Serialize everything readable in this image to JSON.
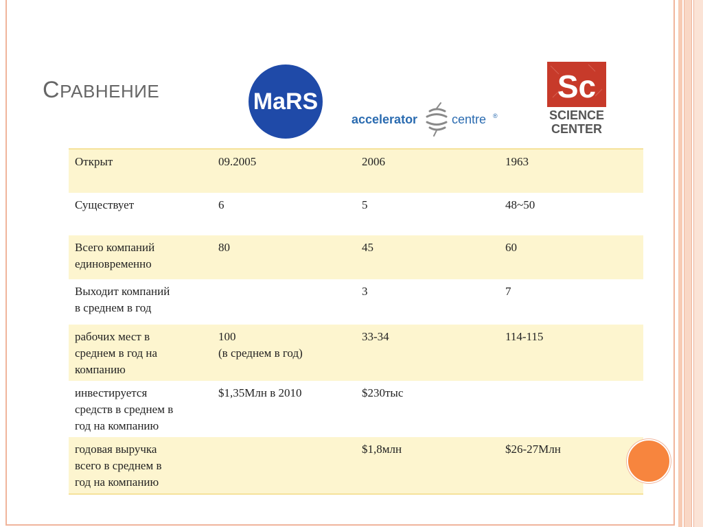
{
  "title": {
    "first_letter": "С",
    "rest": "РАВНЕНИЕ"
  },
  "logos": {
    "mars": {
      "text": "MaRS",
      "color": "#1f4aa8"
    },
    "accelerator": {
      "text_left": "accelerator",
      "text_right": "centre",
      "mark": "®",
      "color": "#2a6bb0"
    },
    "science_center": {
      "letters": "Sc",
      "line1": "SCIENCE",
      "line2": "CENTER",
      "red": "#c73a2a",
      "gray": "#555555"
    }
  },
  "colors": {
    "row_highlight": "#fdf5cf",
    "border_accent": "#f0b49b",
    "circle": "#f7853e"
  },
  "table": {
    "rows": [
      {
        "label": "Открыт",
        "mars": "09.2005",
        "accelerator": "2006",
        "science": "1963"
      },
      {
        "label": "Существует",
        "mars": "6",
        "accelerator": "5",
        "science": "48~50"
      },
      {
        "label": "Всего компаний\nединовременно",
        "mars": "80",
        "accelerator": "45",
        "science": "60"
      },
      {
        "label": "Выходит компаний\nв среднем в год",
        "mars": "",
        "accelerator": "3",
        "science": "7"
      },
      {
        "label": "рабочих мест в\nсреднем в год на\nкомпанию",
        "mars": "100\n(в среднем в год)",
        "accelerator": "33-34",
        "science": "114-115"
      },
      {
        "label": "инвестируется\nсредств в среднем в\nгод на компанию",
        "mars": "$1,35Млн в 2010",
        "accelerator": "$230тыс",
        "science": ""
      },
      {
        "label": "годовая выручка\nвсего в среднем в\nгод на компанию",
        "mars": "",
        "accelerator": "$1,8млн",
        "science": "$26-27Млн"
      }
    ]
  }
}
